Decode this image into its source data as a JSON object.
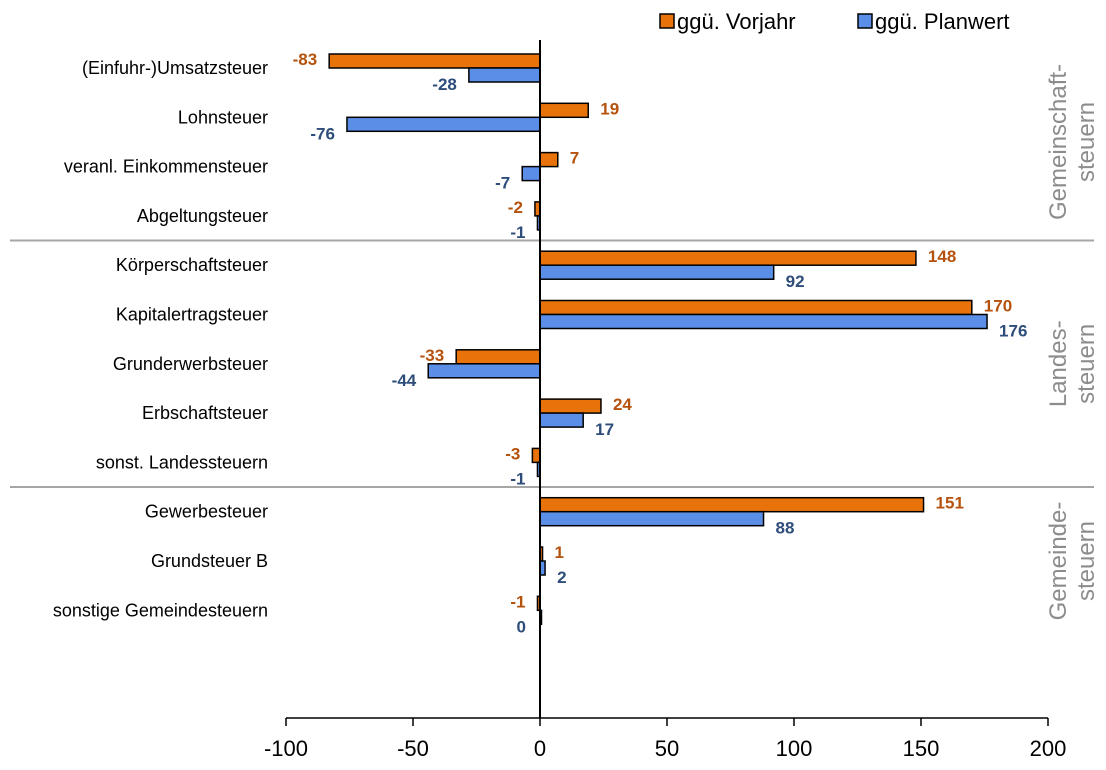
{
  "chart_data": {
    "type": "bar",
    "orientation": "horizontal",
    "xlim": [
      -100,
      200
    ],
    "xticks": [
      "-100",
      "-50",
      "0",
      "50",
      "100",
      "150",
      "200"
    ],
    "legend_position": "top-right",
    "series": [
      {
        "name": "ggü. Vorjahr",
        "color": "#e8730a",
        "label_color": "#b5520d"
      },
      {
        "name": "ggü. Planwert",
        "color": "#5b8ee6",
        "label_color": "#2e4d7a"
      }
    ],
    "groups": [
      {
        "label_lines": [
          "Gemeinschaft-",
          "steuern"
        ],
        "categories": [
          {
            "name": "(Einfuhr-)Umsatzsteuer",
            "values": [
              -83,
              -28
            ]
          },
          {
            "name": "Lohnsteuer",
            "values": [
              19,
              -76
            ]
          },
          {
            "name": "veranl. Einkommensteuer",
            "values": [
              7,
              -7
            ]
          },
          {
            "name": "Abgeltungsteuer",
            "values": [
              -2,
              -1
            ]
          }
        ]
      },
      {
        "label_lines": [
          "Landes-",
          "steuern"
        ],
        "categories": [
          {
            "name": "Körperschaftsteuer",
            "values": [
              148,
              92
            ]
          },
          {
            "name": "Kapitalertragsteuer",
            "values": [
              170,
              176
            ]
          },
          {
            "name": "Grunderwerbsteuer",
            "values": [
              -33,
              -44
            ]
          },
          {
            "name": "Erbschaftsteuer",
            "values": [
              24,
              17
            ]
          },
          {
            "name": "sonst. Landessteuern",
            "values": [
              -3,
              -1
            ]
          }
        ]
      },
      {
        "label_lines": [
          "Gemeinde-",
          "steuern"
        ],
        "categories": [
          {
            "name": "Gewerbesteuer",
            "values": [
              151,
              88
            ]
          },
          {
            "name": "Grundsteuer B",
            "values": [
              1,
              2
            ]
          },
          {
            "name": "sonstige Gemeindesteuern",
            "values": [
              -1,
              0
            ]
          }
        ]
      }
    ]
  }
}
